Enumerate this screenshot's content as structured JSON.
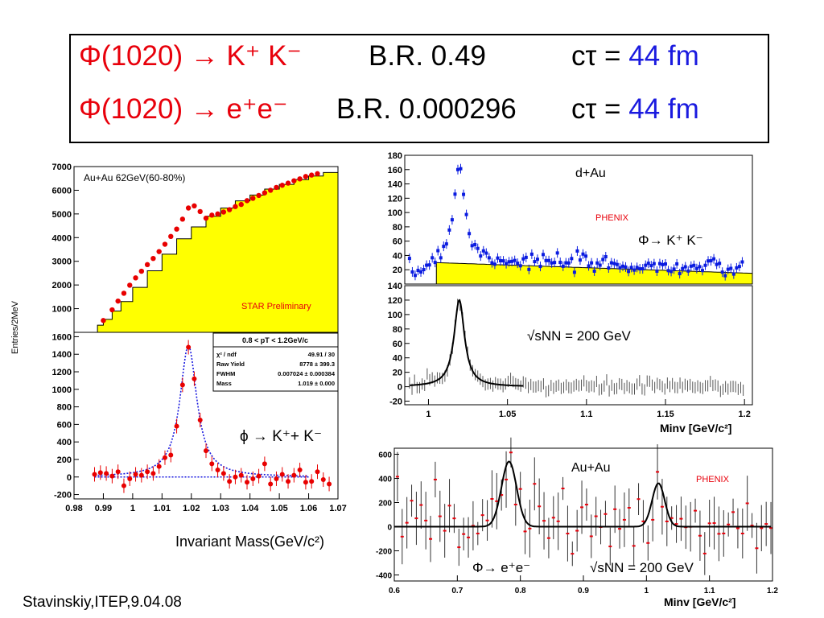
{
  "header": {
    "line1": {
      "decay": "Φ(1020) → K⁺ K⁻",
      "br": "B.R. 0.49",
      "ctau": "cτ =",
      "ctau_value": "44 fm"
    },
    "line2": {
      "decay": "Φ(1020) → e⁺e⁻",
      "br": "B.R. 0.000296",
      "ctau": "cτ =",
      "ctau_value": "44 fm"
    }
  },
  "footer": "Stavinskiy,ITEP,9.04.08",
  "colors": {
    "red": "#e8000b",
    "blue": "#1a1adf",
    "yellow": "#ffff00",
    "star_marker": "#e80000",
    "phenix_marker": "#0a1be0"
  },
  "chart_data": [
    {
      "id": "star-top",
      "type": "scatter",
      "title": "Au+Au 62GeV(60-80%)",
      "annotation": "STAR Preliminary",
      "xlim": [
        0.98,
        1.07
      ],
      "ylim": [
        0,
        7000
      ],
      "yticks": [
        1000,
        2000,
        3000,
        4000,
        5000,
        6000,
        7000
      ],
      "points": [
        [
          0.99,
          500
        ],
        [
          0.993,
          950
        ],
        [
          0.995,
          1320
        ],
        [
          0.997,
          1650
        ],
        [
          0.999,
          1990
        ],
        [
          1.001,
          2300
        ],
        [
          1.003,
          2580
        ],
        [
          1.005,
          2860
        ],
        [
          1.007,
          3120
        ],
        [
          1.009,
          3410
        ],
        [
          1.011,
          3720
        ],
        [
          1.013,
          4050
        ],
        [
          1.015,
          4360
        ],
        [
          1.017,
          4780
        ],
        [
          1.019,
          5250
        ],
        [
          1.021,
          5340
        ],
        [
          1.023,
          5100
        ],
        [
          1.025,
          4820
        ],
        [
          1.027,
          4950
        ],
        [
          1.029,
          5000
        ],
        [
          1.031,
          5080
        ],
        [
          1.033,
          5180
        ],
        [
          1.035,
          5310
        ],
        [
          1.037,
          5400
        ],
        [
          1.039,
          5560
        ],
        [
          1.041,
          5660
        ],
        [
          1.043,
          5780
        ],
        [
          1.045,
          5890
        ],
        [
          1.047,
          6000
        ],
        [
          1.049,
          6120
        ],
        [
          1.051,
          6210
        ],
        [
          1.053,
          6300
        ],
        [
          1.055,
          6400
        ],
        [
          1.057,
          6480
        ],
        [
          1.059,
          6580
        ],
        [
          1.061,
          6640
        ],
        [
          1.063,
          6700
        ]
      ],
      "background_shape": [
        [
          0.988,
          300
        ],
        [
          0.99,
          550
        ],
        [
          0.993,
          900
        ],
        [
          0.996,
          1300
        ],
        [
          1.0,
          1900
        ],
        [
          1.005,
          2600
        ],
        [
          1.01,
          3300
        ],
        [
          1.015,
          3950
        ],
        [
          1.02,
          4450
        ],
        [
          1.025,
          4900
        ],
        [
          1.03,
          5250
        ],
        [
          1.035,
          5550
        ],
        [
          1.04,
          5800
        ],
        [
          1.045,
          6050
        ],
        [
          1.05,
          6250
        ],
        [
          1.055,
          6450
        ],
        [
          1.06,
          6600
        ],
        [
          1.065,
          6750
        ],
        [
          1.07,
          6850
        ]
      ]
    },
    {
      "id": "star-bottom",
      "type": "scatter",
      "xlabel": "Invariant Mass(GeV/c²)",
      "ylabel": "Entries/2MeV",
      "annotation": "ϕ → K⁺+ K⁻",
      "xlim": [
        0.98,
        1.07
      ],
      "ylim": [
        -250,
        1650
      ],
      "xticks": [
        0.98,
        0.99,
        1,
        1.01,
        1.02,
        1.03,
        1.04,
        1.05,
        1.06,
        1.07
      ],
      "xtick_labels": [
        "0.98",
        "0.99",
        "1",
        "1.01",
        "1.02",
        "1.03",
        "1.04",
        "1.05",
        "1.06",
        "1.07"
      ],
      "yticks": [
        -200,
        0,
        200,
        400,
        600,
        800,
        1000,
        1200,
        1400,
        1600
      ],
      "points": [
        [
          0.987,
          30
        ],
        [
          0.989,
          50
        ],
        [
          0.991,
          40
        ],
        [
          0.993,
          10
        ],
        [
          0.995,
          60
        ],
        [
          0.997,
          -100
        ],
        [
          0.999,
          -20
        ],
        [
          1.001,
          30
        ],
        [
          1.003,
          20
        ],
        [
          1.005,
          60
        ],
        [
          1.007,
          40
        ],
        [
          1.009,
          120
        ],
        [
          1.011,
          220
        ],
        [
          1.013,
          250
        ],
        [
          1.015,
          580
        ],
        [
          1.017,
          1050
        ],
        [
          1.019,
          1480
        ],
        [
          1.021,
          1120
        ],
        [
          1.023,
          650
        ],
        [
          1.025,
          300
        ],
        [
          1.027,
          150
        ],
        [
          1.029,
          80
        ],
        [
          1.031,
          40
        ],
        [
          1.033,
          -50
        ],
        [
          1.035,
          0
        ],
        [
          1.037,
          20
        ],
        [
          1.039,
          -60
        ],
        [
          1.041,
          -20
        ],
        [
          1.043,
          10
        ],
        [
          1.045,
          150
        ],
        [
          1.047,
          -80
        ],
        [
          1.049,
          -20
        ],
        [
          1.051,
          30
        ],
        [
          1.053,
          -50
        ],
        [
          1.055,
          20
        ],
        [
          1.057,
          80
        ],
        [
          1.059,
          -60
        ],
        [
          1.061,
          -50
        ],
        [
          1.063,
          60
        ],
        [
          1.065,
          -30
        ],
        [
          1.067,
          -80
        ]
      ],
      "stats_box": {
        "title": "0.8 < pT < 1.2GeV/c",
        "rows": [
          {
            "label": "χ² / ndf",
            "value": "49.91 / 30"
          },
          {
            "label": "Raw Yield",
            "value": "8778 ± 399.3"
          },
          {
            "label": "FWHM",
            "value": "0.007024 ± 0.000384"
          },
          {
            "label": "Mass",
            "value": "1.019 ± 0.000"
          }
        ]
      },
      "fit": {
        "mass": 1.019,
        "fwhm": 0.007024,
        "peak": 1500
      }
    },
    {
      "id": "phenix-dau-top",
      "type": "scatter",
      "title": "d+Au",
      "annotation": "PHENIX",
      "legend": "Φ→ K⁺ K⁻",
      "xlim": [
        0.985,
        1.205
      ],
      "ylim": [
        0,
        180
      ],
      "yticks": [
        20,
        40,
        60,
        80,
        100,
        120,
        140,
        160,
        180
      ],
      "peak": {
        "mass": 1.0195,
        "height": 170,
        "width": 0.004
      },
      "background_level": 30
    },
    {
      "id": "phenix-dau-bottom",
      "type": "scatter",
      "annotation": "√sNN = 200 GeV",
      "xlabel": "Minv [GeV/c²]",
      "xlim": [
        0.985,
        1.205
      ],
      "ylim": [
        -25,
        140
      ],
      "xticks": [
        1,
        1.05,
        1.1,
        1.15,
        1.2
      ],
      "xtick_labels": [
        "1",
        "1.05",
        "1.1",
        "1.15",
        "1.2"
      ],
      "yticks": [
        -20,
        0,
        20,
        40,
        60,
        80,
        100,
        120,
        140
      ],
      "peak": {
        "mass": 1.0195,
        "height": 120,
        "width": 0.004
      }
    },
    {
      "id": "phenix-auau",
      "type": "scatter",
      "title": "Au+Au",
      "annotation": "PHENIX",
      "legend": "Φ→ e⁺e⁻",
      "energy_label": "√sNN = 200 GeV",
      "xlabel": "Minv [GeV/c²]",
      "xlim": [
        0.6,
        1.2
      ],
      "ylim": [
        -450,
        650
      ],
      "xticks": [
        0.6,
        0.7,
        0.8,
        0.9,
        1,
        1.1,
        1.2
      ],
      "xtick_labels": [
        "0.6",
        "0.7",
        "0.8",
        "0.9",
        "1",
        "1.1",
        "1.2"
      ],
      "yticks": [
        -400,
        -200,
        0,
        200,
        400,
        600
      ],
      "peaks": [
        {
          "mass": 0.782,
          "height": 540,
          "width": 0.012
        },
        {
          "mass": 1.019,
          "height": 360,
          "width": 0.01
        }
      ]
    }
  ]
}
